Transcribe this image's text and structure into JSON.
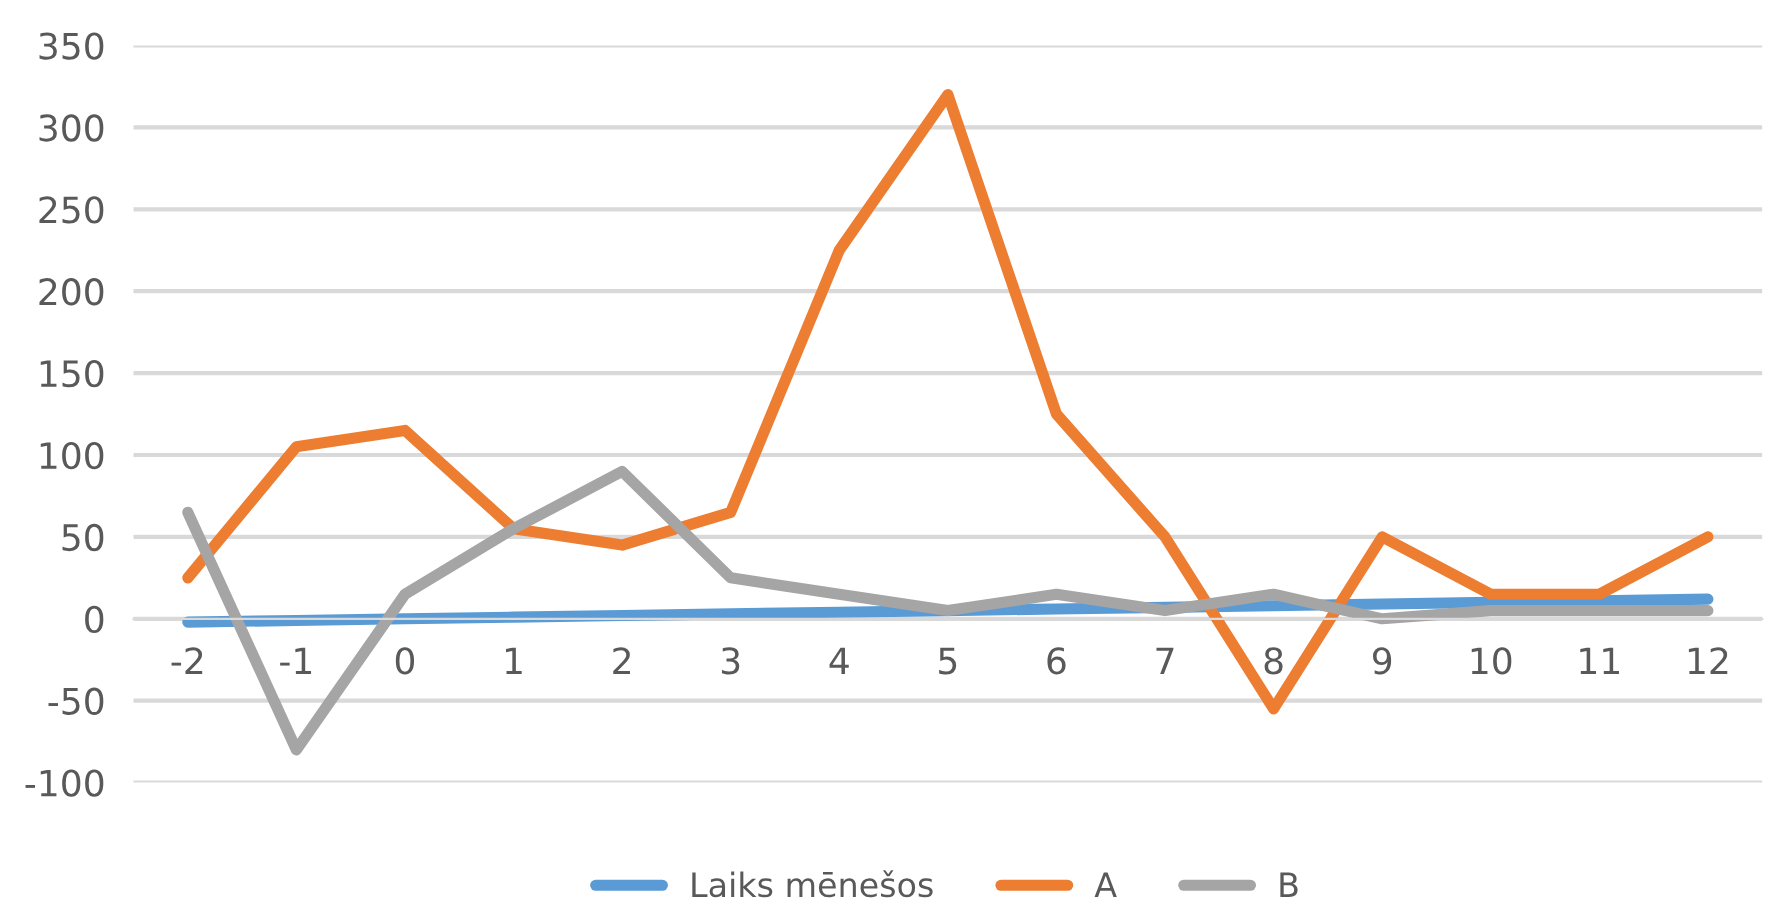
{
  "chart_data": {
    "type": "line",
    "categories": [
      "-2",
      "-1",
      "0",
      "1",
      "2",
      "3",
      "4",
      "5",
      "6",
      "7",
      "8",
      "9",
      "10",
      "11",
      "12"
    ],
    "series": [
      {
        "name": "Laiks mēnešos",
        "color": "#5b9bd5",
        "values": [
          -2,
          -1,
          0,
          1,
          2,
          3,
          4,
          5,
          6,
          7,
          8,
          9,
          10,
          11,
          12
        ]
      },
      {
        "name": "A",
        "color": "#ed7d31",
        "values": [
          25,
          105,
          115,
          55,
          45,
          65,
          225,
          320,
          125,
          50,
          -55,
          50,
          15,
          15,
          50
        ]
      },
      {
        "name": "B",
        "color": "#a5a5a5",
        "values": [
          65,
          -80,
          15,
          55,
          90,
          25,
          15,
          5,
          15,
          5,
          15,
          0,
          5,
          5,
          5
        ]
      }
    ],
    "ylim": [
      -100,
      350
    ],
    "yticks": [
      -100,
      -50,
      0,
      50,
      100,
      150,
      200,
      250,
      300,
      350
    ],
    "grid": "y",
    "legend": "bottom",
    "marker": "none",
    "line_style": "solid"
  }
}
